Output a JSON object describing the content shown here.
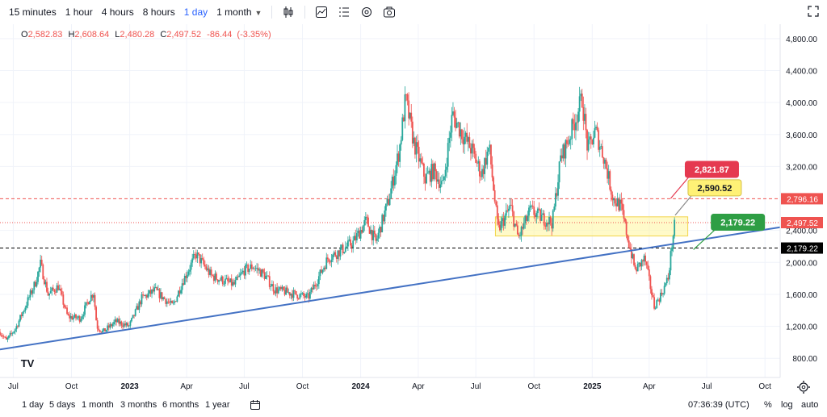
{
  "toolbar": {
    "timeframes": [
      {
        "label": "15 minutes",
        "active": false
      },
      {
        "label": "1 hour",
        "active": false
      },
      {
        "label": "4 hours",
        "active": false
      },
      {
        "label": "8 hours",
        "active": false
      },
      {
        "label": "1 day",
        "active": true
      },
      {
        "label": "1 month",
        "active": false
      }
    ],
    "icons": [
      "candlestick-icon",
      "indicators-icon",
      "compare-icon",
      "settings-icon",
      "camera-icon",
      "fullscreen-icon"
    ]
  },
  "ohlc": {
    "open_label": "O",
    "open": "2,582.83",
    "high_label": "H",
    "high": "2,608.64",
    "low_label": "L",
    "low": "2,480.28",
    "close_label": "C",
    "close": "2,497.52",
    "change": "-86.44",
    "change_pct": "(-3.35%)",
    "color": "#ef5350"
  },
  "price_axis": {
    "ticks": [
      "4,800.00",
      "4,400.00",
      "4,000.00",
      "3,600.00",
      "3,200.00",
      "2,400.00",
      "2,000.00",
      "1,600.00",
      "1,200.00",
      "800.00"
    ],
    "badges": [
      {
        "text": "2,796.16",
        "value": 2796.16,
        "bg": "#ef5350",
        "fg": "#ffffff"
      },
      {
        "text": "2,497.52",
        "value": 2497.52,
        "bg": "#ef5350",
        "fg": "#ffffff"
      },
      {
        "text": "2,179.22",
        "value": 2179.22,
        "bg": "#000000",
        "fg": "#ffffff"
      }
    ]
  },
  "time_axis": {
    "labels": [
      {
        "text": "Jul",
        "date": "2022-07-01",
        "bold": false
      },
      {
        "text": "Oct",
        "date": "2022-10-01",
        "bold": false
      },
      {
        "text": "2023",
        "date": "2023-01-01",
        "bold": true
      },
      {
        "text": "Apr",
        "date": "2023-04-01",
        "bold": false
      },
      {
        "text": "Jul",
        "date": "2023-07-01",
        "bold": false
      },
      {
        "text": "Oct",
        "date": "2023-10-01",
        "bold": false
      },
      {
        "text": "2024",
        "date": "2024-01-01",
        "bold": true
      },
      {
        "text": "Apr",
        "date": "2024-04-01",
        "bold": false
      },
      {
        "text": "Jul",
        "date": "2024-07-01",
        "bold": false
      },
      {
        "text": "Oct",
        "date": "2024-10-01",
        "bold": false
      },
      {
        "text": "2025",
        "date": "2025-01-01",
        "bold": true
      },
      {
        "text": "Apr",
        "date": "2025-04-01",
        "bold": false
      },
      {
        "text": "Jul",
        "date": "2025-07-01",
        "bold": false
      },
      {
        "text": "Oct",
        "date": "2025-10-01",
        "bold": false
      }
    ]
  },
  "bottom": {
    "ranges": [
      "1 day",
      "5 days",
      "1 month",
      "3 months",
      "6 months",
      "1 year"
    ],
    "time": "07:36:39 (UTC)",
    "percent": "%",
    "log": "log",
    "auto": "auto"
  },
  "logo_text": "TV",
  "colors": {
    "up": "#26a69a",
    "down": "#ef5350",
    "trendline": "#4472c4",
    "zone_fill": "#fff59d",
    "zone_stroke": "#f2d54c",
    "callout_red": "#e53950",
    "callout_yellow": "#fff176",
    "callout_green": "#2e9e44"
  },
  "chart_data": {
    "type": "candlestick",
    "title": "",
    "xlabel": "",
    "ylabel": "",
    "xlim": [
      "2022-06-10",
      "2025-10-25"
    ],
    "ylim": [
      560,
      4980
    ],
    "grid": true,
    "series": [
      {
        "name": "",
        "values": [
          [
            "2022-06-10",
            1130
          ],
          [
            "2022-06-20",
            1020
          ],
          [
            "2022-07-05",
            1180
          ],
          [
            "2022-07-20",
            1450
          ],
          [
            "2022-08-05",
            1750
          ],
          [
            "2022-08-13",
            1980
          ],
          [
            "2022-08-25",
            1600
          ],
          [
            "2022-09-10",
            1700
          ],
          [
            "2022-09-25",
            1320
          ],
          [
            "2022-10-15",
            1300
          ],
          [
            "2022-10-30",
            1560
          ],
          [
            "2022-11-05",
            1620
          ],
          [
            "2022-11-10",
            1200
          ],
          [
            "2022-11-20",
            1130
          ],
          [
            "2022-12-10",
            1260
          ],
          [
            "2022-12-31",
            1200
          ],
          [
            "2023-01-20",
            1550
          ],
          [
            "2023-02-10",
            1650
          ],
          [
            "2023-03-10",
            1450
          ],
          [
            "2023-03-25",
            1750
          ],
          [
            "2023-04-16",
            2100
          ],
          [
            "2023-05-10",
            1830
          ],
          [
            "2023-06-15",
            1720
          ],
          [
            "2023-07-01",
            1900
          ],
          [
            "2023-07-15",
            1950
          ],
          [
            "2023-08-01",
            1850
          ],
          [
            "2023-08-18",
            1660
          ],
          [
            "2023-09-10",
            1620
          ],
          [
            "2023-10-10",
            1560
          ],
          [
            "2023-10-25",
            1790
          ],
          [
            "2023-11-10",
            2050
          ],
          [
            "2023-12-01",
            2150
          ],
          [
            "2023-12-20",
            2250
          ],
          [
            "2024-01-10",
            2520
          ],
          [
            "2024-01-25",
            2250
          ],
          [
            "2024-02-15",
            2800
          ],
          [
            "2024-03-02",
            3400
          ],
          [
            "2024-03-12",
            4050
          ],
          [
            "2024-03-25",
            3500
          ],
          [
            "2024-04-12",
            3050
          ],
          [
            "2024-04-25",
            3150
          ],
          [
            "2024-05-10",
            2950
          ],
          [
            "2024-05-25",
            3850
          ],
          [
            "2024-06-10",
            3600
          ],
          [
            "2024-06-25",
            3400
          ],
          [
            "2024-07-10",
            3100
          ],
          [
            "2024-07-22",
            3450
          ],
          [
            "2024-08-05",
            2400
          ],
          [
            "2024-08-25",
            2700
          ],
          [
            "2024-09-06",
            2300
          ],
          [
            "2024-09-25",
            2650
          ],
          [
            "2024-10-15",
            2550
          ],
          [
            "2024-10-30",
            2500
          ],
          [
            "2024-11-12",
            3300
          ],
          [
            "2024-11-25",
            3550
          ],
          [
            "2024-12-16",
            4050
          ],
          [
            "2024-12-25",
            3400
          ],
          [
            "2025-01-06",
            3650
          ],
          [
            "2025-01-20",
            3300
          ],
          [
            "2025-02-03",
            2800
          ],
          [
            "2025-02-15",
            2700
          ],
          [
            "2025-03-01",
            2200
          ],
          [
            "2025-03-10",
            1900
          ],
          [
            "2025-03-25",
            2050
          ],
          [
            "2025-04-09",
            1450
          ],
          [
            "2025-04-20",
            1600
          ],
          [
            "2025-05-01",
            1800
          ],
          [
            "2025-05-08",
            2300
          ],
          [
            "2025-05-12",
            2500
          ]
        ]
      }
    ],
    "horizontal_lines": [
      {
        "value": 2796.16,
        "style": "dashed",
        "color": "#ef5350"
      },
      {
        "value": 2497.52,
        "style": "dotted",
        "color": "#ef5350"
      },
      {
        "value": 2179.22,
        "style": "dashed",
        "color": "#000000"
      }
    ],
    "zone": {
      "x_start": "2024-08-01",
      "x_end": "2025-06-01",
      "y_low": 2330,
      "y_high": 2570
    },
    "trendline": {
      "x1": "2022-06-10",
      "y1": 910,
      "x2": "2025-10-25",
      "y2": 2440
    },
    "callouts": [
      {
        "text": "2,821.87",
        "value": 2821.87,
        "anchor_date": "2025-05-05",
        "anchor_value": 2800,
        "style": "red"
      },
      {
        "text": "2,590.52",
        "value": 2590.52,
        "anchor_date": "2025-05-12",
        "anchor_value": 2590,
        "style": "yellow"
      },
      {
        "text": "2,179.22",
        "value": 2179.22,
        "anchor_date": "2025-06-10",
        "anchor_value": 2160,
        "style": "green"
      }
    ]
  }
}
